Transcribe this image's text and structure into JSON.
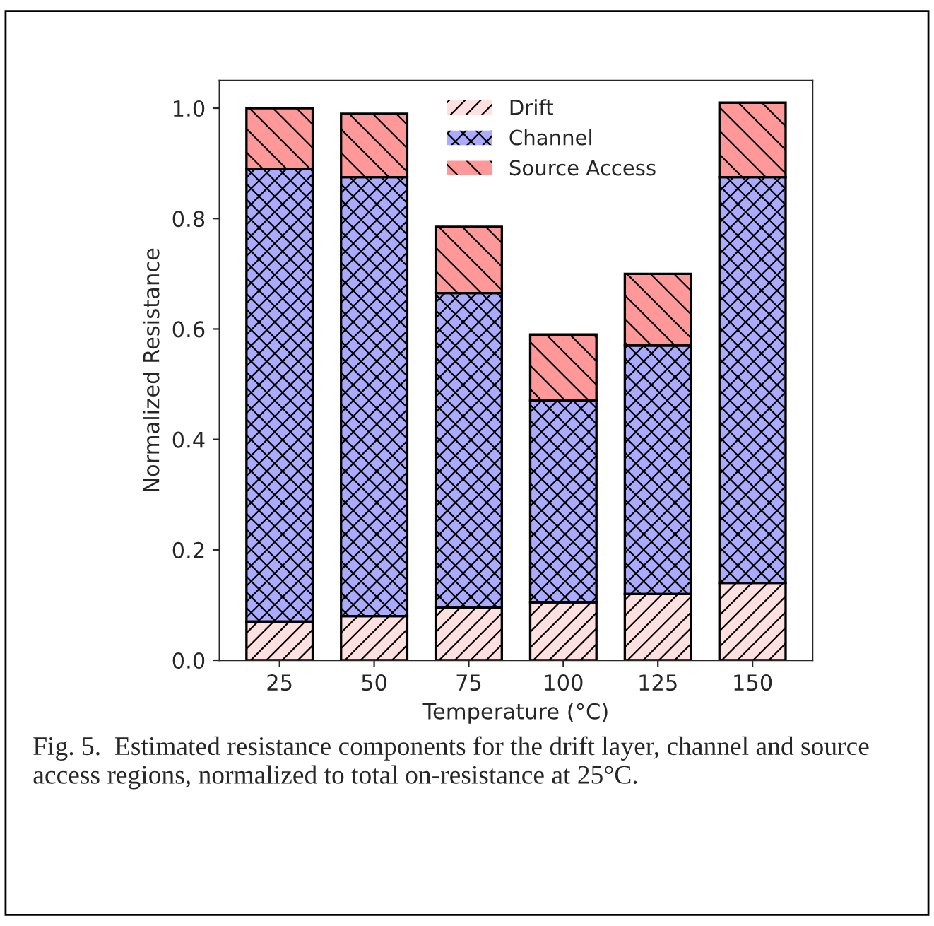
{
  "chart_data": {
    "type": "bar",
    "stacked": true,
    "xlabel": "Temperature (°C)",
    "ylabel": "Normalized Resistance",
    "categories": [
      "25",
      "50",
      "75",
      "100",
      "125",
      "150"
    ],
    "series": [
      {
        "name": "Drift",
        "color": "#ffe0e0",
        "values": [
          0.07,
          0.08,
          0.095,
          0.105,
          0.12,
          0.14
        ]
      },
      {
        "name": "Channel",
        "color": "#aaaaff",
        "values": [
          0.82,
          0.795,
          0.57,
          0.365,
          0.45,
          0.735
        ]
      },
      {
        "name": "Source Access",
        "color": "#ff9999",
        "values": [
          0.11,
          0.115,
          0.12,
          0.12,
          0.13,
          0.135
        ]
      }
    ],
    "ylim": [
      0,
      1.05
    ],
    "yticks": [
      {
        "value": 0,
        "label": "0.0"
      },
      {
        "value": 0.2,
        "label": "0.2"
      },
      {
        "value": 0.4,
        "label": "0.4"
      },
      {
        "value": 0.6,
        "label": "0.6"
      },
      {
        "value": 0.8,
        "label": "0.8"
      },
      {
        "value": 1.0,
        "label": "1.0"
      }
    ],
    "legend": "top",
    "grid": false,
    "annotations": [
      "Fig. 5.  Estimated resistance components for the drift layer, channel and source access regions, normalized to total on-resistance at 25°C."
    ]
  }
}
